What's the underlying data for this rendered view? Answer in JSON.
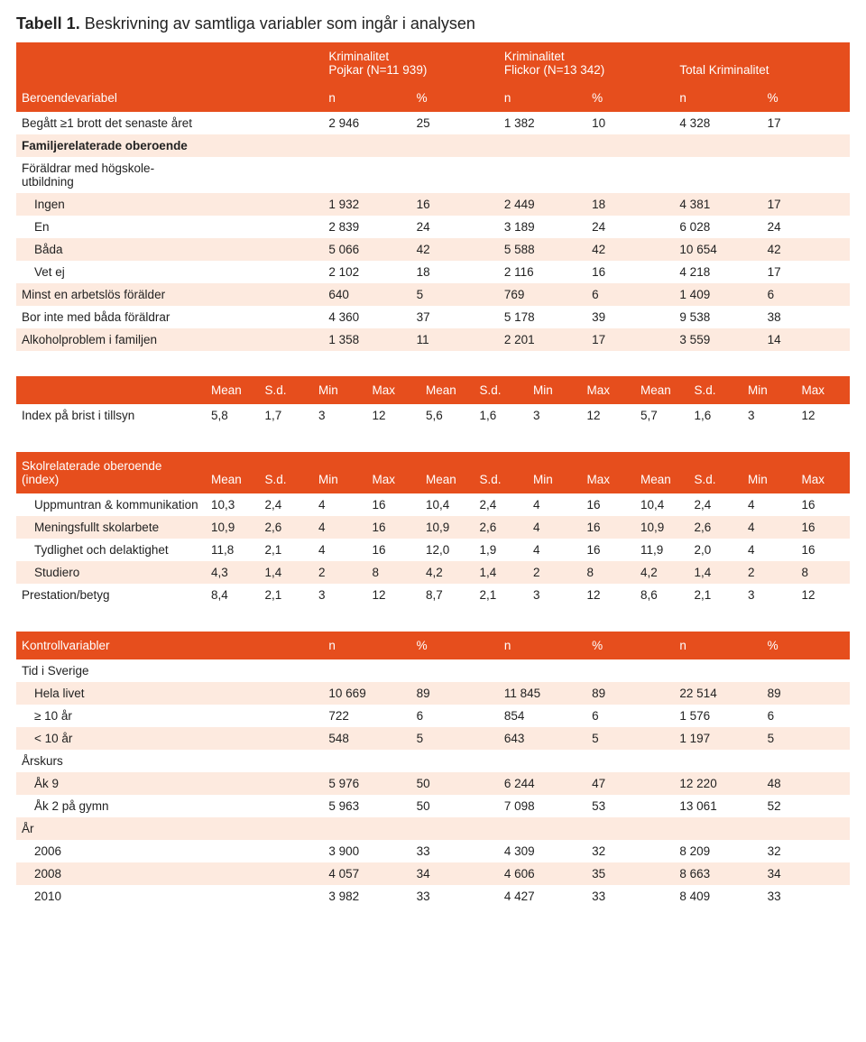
{
  "title_prefix": "Tabell 1.",
  "title_rest": " Beskrivning av samtliga variabler som ingår i analysen",
  "t1": {
    "group_headers": [
      "Kriminalitet\nPojkar (N=11 939)",
      "Kriminalitet\nFlickor (N=13 342)",
      "Total Kriminalitet"
    ],
    "sub_group": [
      "n",
      "%",
      "n",
      "%",
      "n",
      "%"
    ],
    "rowhead_label": "Beroendevariabel",
    "rows": [
      {
        "label": "Begått ≥1 brott det senaste året",
        "cells": [
          "2 946",
          "25",
          "1 382",
          "10",
          "4 328",
          "17"
        ],
        "bold": false,
        "indent": 0
      },
      {
        "label": "Familjerelaterade oberoende",
        "cells": [
          "",
          "",
          "",
          "",
          "",
          ""
        ],
        "bold": true,
        "indent": 0
      },
      {
        "label": "Föräldrar med högskole-\nutbildning",
        "cells": [
          "",
          "",
          "",
          "",
          "",
          ""
        ],
        "bold": false,
        "indent": 0,
        "nowrap": false
      },
      {
        "label": "Ingen",
        "cells": [
          "1 932",
          "16",
          "2 449",
          "18",
          "4 381",
          "17"
        ],
        "bold": false,
        "indent": 1
      },
      {
        "label": "En",
        "cells": [
          "2 839",
          "24",
          "3 189",
          "24",
          "6 028",
          "24"
        ],
        "bold": false,
        "indent": 1
      },
      {
        "label": "Båda",
        "cells": [
          "5 066",
          "42",
          "5 588",
          "42",
          "10 654",
          "42"
        ],
        "bold": false,
        "indent": 1
      },
      {
        "label": "Vet ej",
        "cells": [
          "2 102",
          "18",
          "2 116",
          "16",
          "4 218",
          "17"
        ],
        "bold": false,
        "indent": 1
      },
      {
        "label": "Minst en arbetslös förälder",
        "cells": [
          "640",
          "5",
          "769",
          "6",
          "1 409",
          "6"
        ],
        "bold": false,
        "indent": 0
      },
      {
        "label": "Bor inte med båda föräldrar",
        "cells": [
          "4 360",
          "37",
          "5 178",
          "39",
          "9 538",
          "38"
        ],
        "bold": false,
        "indent": 0
      },
      {
        "label": "Alkoholproblem i familjen",
        "cells": [
          "1 358",
          "11",
          "2 201",
          "17",
          "3 559",
          "14"
        ],
        "bold": false,
        "indent": 0
      }
    ]
  },
  "t2": {
    "stat_headers": [
      "Mean",
      "S.d.",
      "Min",
      "Max",
      "Mean",
      "S.d.",
      "Min",
      "Max",
      "Mean",
      "S.d.",
      "Min",
      "Max"
    ],
    "rows": [
      {
        "label": "Index på brist i tillsyn",
        "cells": [
          "5,8",
          "1,7",
          "3",
          "12",
          "5,6",
          "1,6",
          "3",
          "12",
          "5,7",
          "1,6",
          "3",
          "12"
        ],
        "indent": 0
      }
    ]
  },
  "t3": {
    "rowhead_label": "Skolrelaterade oberoende (index)",
    "stat_headers": [
      "Mean",
      "S.d.",
      "Min",
      "Max",
      "Mean",
      "S.d.",
      "Min",
      "Max",
      "Mean",
      "S.d.",
      "Min",
      "Max"
    ],
    "rows": [
      {
        "label": "Uppmuntran & kommunikation",
        "cells": [
          "10,3",
          "2,4",
          "4",
          "16",
          "10,4",
          "2,4",
          "4",
          "16",
          "10,4",
          "2,4",
          "4",
          "16"
        ],
        "indent": 1
      },
      {
        "label": "Meningsfullt skolarbete",
        "cells": [
          "10,9",
          "2,6",
          "4",
          "16",
          "10,9",
          "2,6",
          "4",
          "16",
          "10,9",
          "2,6",
          "4",
          "16"
        ],
        "indent": 1
      },
      {
        "label": "Tydlighet och delaktighet",
        "cells": [
          "11,8",
          "2,1",
          "4",
          "16",
          "12,0",
          "1,9",
          "4",
          "16",
          "11,9",
          "2,0",
          "4",
          "16"
        ],
        "indent": 1
      },
      {
        "label": "Studiero",
        "cells": [
          "4,3",
          "1,4",
          "2",
          "8",
          "4,2",
          "1,4",
          "2",
          "8",
          "4,2",
          "1,4",
          "2",
          "8"
        ],
        "indent": 1
      },
      {
        "label": "Prestation/betyg",
        "cells": [
          "8,4",
          "2,1",
          "3",
          "12",
          "8,7",
          "2,1",
          "3",
          "12",
          "8,6",
          "2,1",
          "3",
          "12"
        ],
        "indent": 0
      }
    ]
  },
  "t4": {
    "rowhead_label": "Kontrollvariabler",
    "sub_group": [
      "n",
      "%",
      "n",
      "%",
      "n",
      "%"
    ],
    "rows": [
      {
        "label": "Tid i Sverige",
        "cells": [
          "",
          "",
          "",
          "",
          "",
          ""
        ],
        "indent": 0
      },
      {
        "label": "Hela livet",
        "cells": [
          "10 669",
          "89",
          "11 845",
          "89",
          "22 514",
          "89"
        ],
        "indent": 1
      },
      {
        "label": "≥ 10 år",
        "cells": [
          "722",
          "6",
          "854",
          "6",
          "1 576",
          "6"
        ],
        "indent": 1
      },
      {
        "label": "< 10 år",
        "cells": [
          "548",
          "5",
          "643",
          "5",
          "1 197",
          "5"
        ],
        "indent": 1
      },
      {
        "label": "Årskurs",
        "cells": [
          "",
          "",
          "",
          "",
          "",
          ""
        ],
        "indent": 0
      },
      {
        "label": "Åk 9",
        "cells": [
          "5 976",
          "50",
          "6 244",
          "47",
          "12 220",
          "48"
        ],
        "indent": 1
      },
      {
        "label": "Åk 2 på gymn",
        "cells": [
          "5 963",
          "50",
          "7 098",
          "53",
          "13 061",
          "52"
        ],
        "indent": 1
      },
      {
        "label": "År",
        "cells": [
          "",
          "",
          "",
          "",
          "",
          ""
        ],
        "indent": 0
      },
      {
        "label": "2006",
        "cells": [
          "3 900",
          "33",
          "4 309",
          "32",
          "8 209",
          "32"
        ],
        "indent": 1
      },
      {
        "label": "2008",
        "cells": [
          "4 057",
          "34",
          "4 606",
          "35",
          "8 663",
          "34"
        ],
        "indent": 1
      },
      {
        "label": "2010",
        "cells": [
          "3 982",
          "33",
          "4 427",
          "33",
          "8 409",
          "33"
        ],
        "indent": 1
      }
    ]
  },
  "colors": {
    "header_bg": "#e64e1d",
    "stripe": "#fdeadf"
  }
}
